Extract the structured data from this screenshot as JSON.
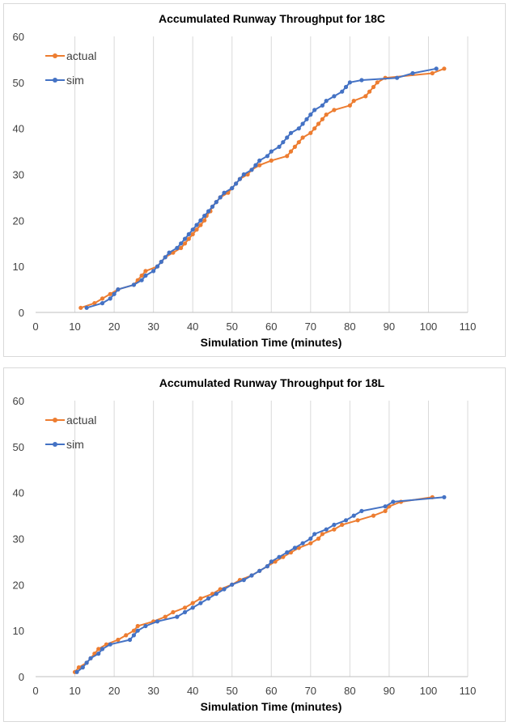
{
  "chart_data": [
    {
      "type": "line",
      "title": "Accumulated Runway Throughput for 18C",
      "xlabel": "Simulation Time (minutes)",
      "ylabel": "",
      "xlim": [
        0,
        110
      ],
      "ylim": [
        0,
        60
      ],
      "xticks": [
        "0",
        "10",
        "20",
        "30",
        "40",
        "50",
        "60",
        "70",
        "80",
        "90",
        "100",
        "110"
      ],
      "yticks": [
        "0",
        "10",
        "20",
        "30",
        "40",
        "50",
        "60"
      ],
      "grid": "vertical",
      "legend": "top-left",
      "series": [
        {
          "name": "actual",
          "color": "#ED7D31",
          "points": [
            [
              11.5,
              1
            ],
            [
              15,
              2
            ],
            [
              17,
              3
            ],
            [
              19,
              4
            ],
            [
              21,
              5
            ],
            [
              25,
              6
            ],
            [
              26,
              7
            ],
            [
              27,
              8
            ],
            [
              28,
              9
            ],
            [
              31,
              10
            ],
            [
              32,
              11
            ],
            [
              33,
              12
            ],
            [
              35,
              13
            ],
            [
              37,
              14
            ],
            [
              38,
              15
            ],
            [
              39,
              16
            ],
            [
              40,
              17
            ],
            [
              41,
              18
            ],
            [
              42,
              19
            ],
            [
              43,
              20
            ],
            [
              43.5,
              21
            ],
            [
              44.5,
              22
            ],
            [
              45,
              23
            ],
            [
              46,
              24
            ],
            [
              47,
              25
            ],
            [
              49,
              26
            ],
            [
              50,
              27
            ],
            [
              51,
              28
            ],
            [
              52,
              29
            ],
            [
              54,
              30
            ],
            [
              55,
              31
            ],
            [
              57,
              32
            ],
            [
              60,
              33
            ],
            [
              64,
              34
            ],
            [
              65,
              35
            ],
            [
              66,
              36
            ],
            [
              67,
              37
            ],
            [
              68,
              38
            ],
            [
              70,
              39
            ],
            [
              71,
              40
            ],
            [
              72,
              41
            ],
            [
              73,
              42
            ],
            [
              74,
              43
            ],
            [
              76,
              44
            ],
            [
              80,
              45
            ],
            [
              81,
              46
            ],
            [
              84,
              47
            ],
            [
              85,
              48
            ],
            [
              86,
              49
            ],
            [
              87,
              50
            ],
            [
              89,
              51
            ],
            [
              101,
              52
            ],
            [
              104,
              53
            ]
          ]
        },
        {
          "name": "sim",
          "color": "#4472C4",
          "points": [
            [
              13,
              1
            ],
            [
              17,
              2
            ],
            [
              19,
              3
            ],
            [
              20,
              4
            ],
            [
              21,
              5
            ],
            [
              25,
              6
            ],
            [
              27,
              7
            ],
            [
              28,
              8
            ],
            [
              30,
              9
            ],
            [
              31,
              10
            ],
            [
              32,
              11
            ],
            [
              33,
              12
            ],
            [
              34,
              13
            ],
            [
              36,
              14
            ],
            [
              37,
              15
            ],
            [
              38,
              16
            ],
            [
              39,
              17
            ],
            [
              40,
              18
            ],
            [
              41,
              19
            ],
            [
              42,
              20
            ],
            [
              43,
              21
            ],
            [
              44,
              22
            ],
            [
              45,
              23
            ],
            [
              46,
              24
            ],
            [
              47,
              25
            ],
            [
              48,
              26
            ],
            [
              50,
              27
            ],
            [
              51,
              28
            ],
            [
              52,
              29
            ],
            [
              53,
              30
            ],
            [
              55,
              31
            ],
            [
              56,
              32
            ],
            [
              57,
              33
            ],
            [
              59,
              34
            ],
            [
              60,
              35
            ],
            [
              62,
              36
            ],
            [
              63,
              37
            ],
            [
              64,
              38
            ],
            [
              65,
              39
            ],
            [
              67,
              40
            ],
            [
              68,
              41
            ],
            [
              69,
              42
            ],
            [
              70,
              43
            ],
            [
              71,
              44
            ],
            [
              73,
              45
            ],
            [
              74,
              46
            ],
            [
              76,
              47
            ],
            [
              78,
              48
            ],
            [
              79,
              49
            ],
            [
              80,
              50
            ],
            [
              83,
              50.5
            ],
            [
              92,
              51
            ],
            [
              96,
              52
            ],
            [
              102,
              53
            ]
          ]
        }
      ]
    },
    {
      "type": "line",
      "title": "Accumulated Runway Throughput for 18L",
      "xlabel": "Simulation Time (minutes)",
      "ylabel": "",
      "xlim": [
        0,
        110
      ],
      "ylim": [
        0,
        60
      ],
      "xticks": [
        "0",
        "10",
        "20",
        "30",
        "40",
        "50",
        "60",
        "70",
        "80",
        "90",
        "100",
        "110"
      ],
      "yticks": [
        "0",
        "10",
        "20",
        "30",
        "40",
        "50",
        "60"
      ],
      "grid": "vertical",
      "legend": "top-left",
      "series": [
        {
          "name": "actual",
          "color": "#ED7D31",
          "points": [
            [
              10,
              1
            ],
            [
              11,
              2
            ],
            [
              13,
              3
            ],
            [
              14,
              4
            ],
            [
              15,
              5
            ],
            [
              16,
              6
            ],
            [
              18,
              7
            ],
            [
              21,
              8
            ],
            [
              23,
              9
            ],
            [
              25,
              10
            ],
            [
              26,
              11
            ],
            [
              30,
              12
            ],
            [
              33,
              13
            ],
            [
              35,
              14
            ],
            [
              38,
              15
            ],
            [
              40,
              16
            ],
            [
              42,
              17
            ],
            [
              45,
              18
            ],
            [
              47,
              19
            ],
            [
              50,
              20
            ],
            [
              52,
              21
            ],
            [
              55,
              22
            ],
            [
              57,
              23
            ],
            [
              59,
              24
            ],
            [
              61,
              25
            ],
            [
              63,
              26
            ],
            [
              65,
              27
            ],
            [
              67,
              28
            ],
            [
              70,
              29
            ],
            [
              72,
              30
            ],
            [
              73,
              31
            ],
            [
              76,
              32
            ],
            [
              78,
              33
            ],
            [
              82,
              34
            ],
            [
              86,
              35
            ],
            [
              89,
              36
            ],
            [
              90,
              37
            ],
            [
              93,
              38
            ],
            [
              101,
              39
            ]
          ]
        },
        {
          "name": "sim",
          "color": "#4472C4",
          "points": [
            [
              10.5,
              1
            ],
            [
              12,
              2
            ],
            [
              13,
              3
            ],
            [
              14,
              4
            ],
            [
              16,
              5
            ],
            [
              17,
              6
            ],
            [
              19,
              7
            ],
            [
              24,
              8
            ],
            [
              25,
              9
            ],
            [
              26,
              10
            ],
            [
              28,
              11
            ],
            [
              31,
              12
            ],
            [
              36,
              13
            ],
            [
              38,
              14
            ],
            [
              40,
              15
            ],
            [
              42,
              16
            ],
            [
              44,
              17
            ],
            [
              46,
              18
            ],
            [
              48,
              19
            ],
            [
              50,
              20
            ],
            [
              53,
              21
            ],
            [
              55,
              22
            ],
            [
              57,
              23
            ],
            [
              59,
              24
            ],
            [
              60,
              25
            ],
            [
              62,
              26
            ],
            [
              64,
              27
            ],
            [
              66,
              28
            ],
            [
              68,
              29
            ],
            [
              70,
              30
            ],
            [
              71,
              31
            ],
            [
              74,
              32
            ],
            [
              76,
              33
            ],
            [
              79,
              34
            ],
            [
              81,
              35
            ],
            [
              83,
              36
            ],
            [
              89,
              37
            ],
            [
              91,
              38
            ],
            [
              104,
              39
            ]
          ]
        }
      ]
    }
  ]
}
